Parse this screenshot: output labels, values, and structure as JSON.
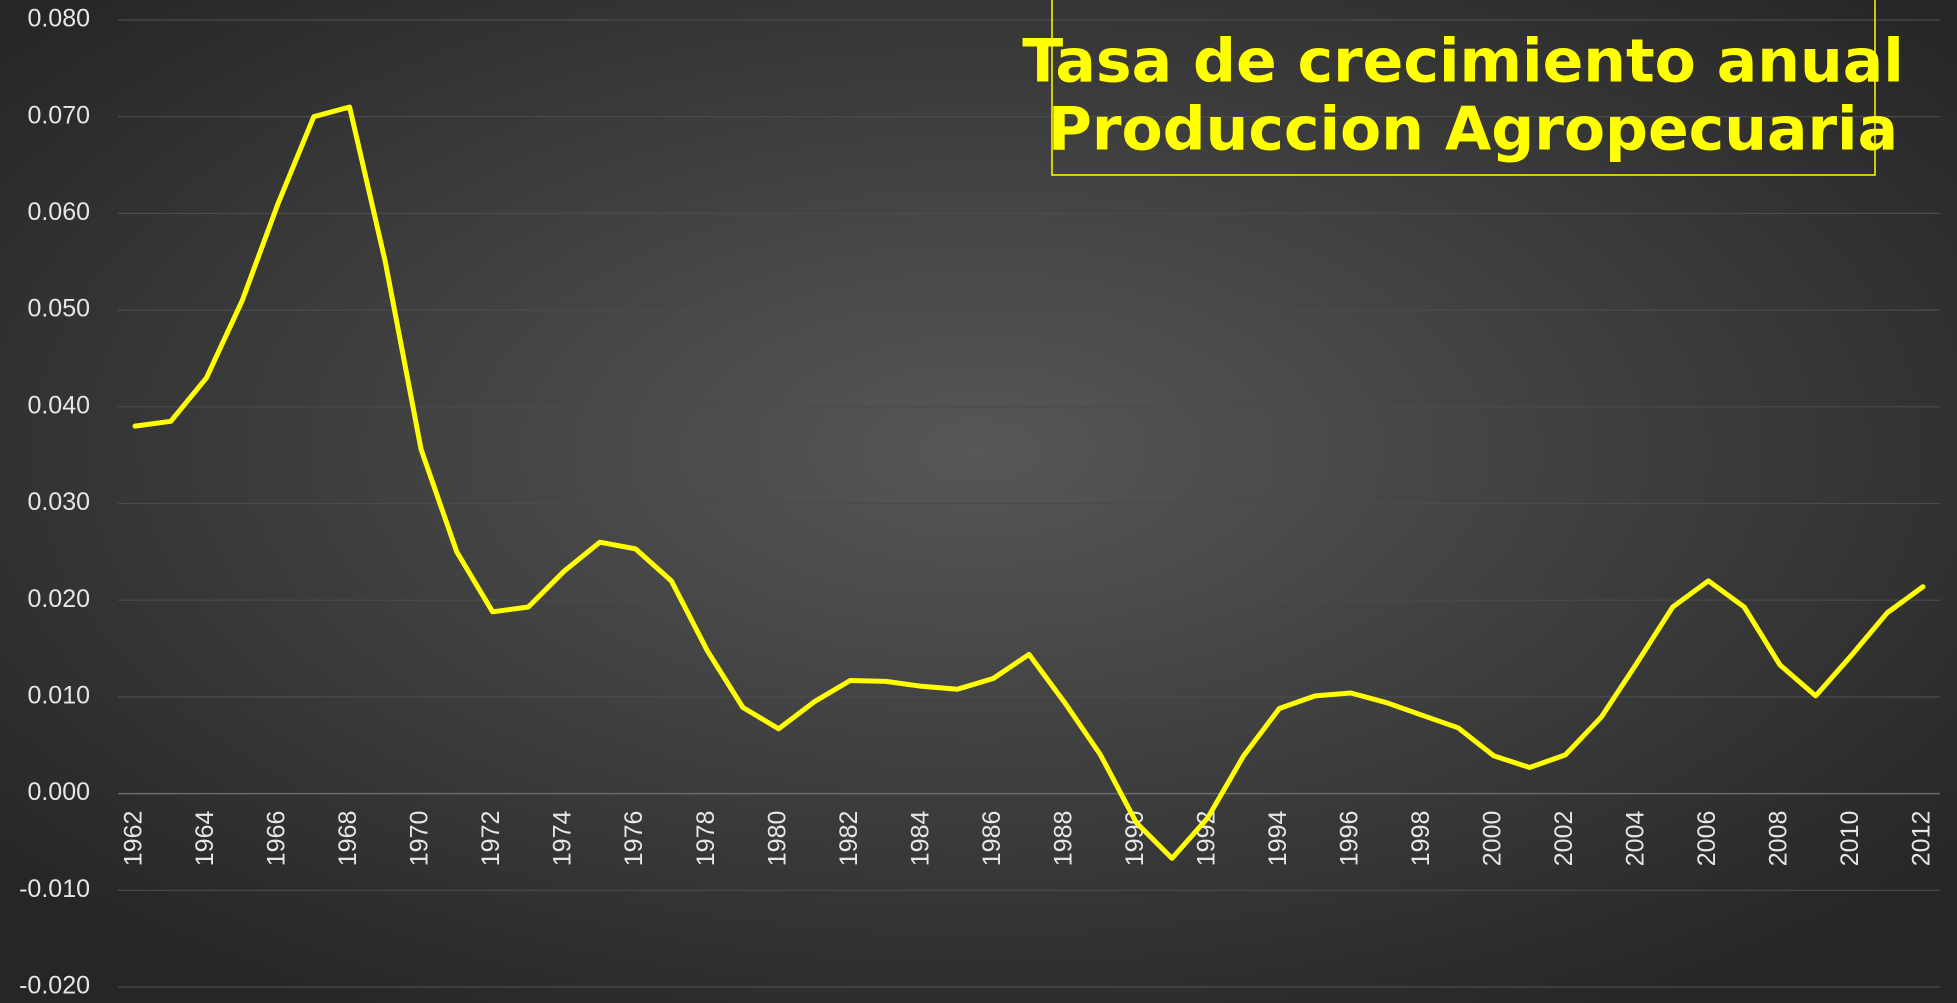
{
  "chart_data": {
    "type": "line",
    "title": [
      "Tasa de crecimiento anual",
      "Produccion Agropecuaria"
    ],
    "categories": [
      "1962",
      null,
      "1964",
      null,
      "1966",
      null,
      "1968",
      null,
      "1970",
      null,
      "1972",
      null,
      "1974",
      null,
      "1976",
      null,
      "1978",
      null,
      "1980",
      null,
      "1982",
      null,
      "1984",
      null,
      "1986",
      null,
      "1988",
      null,
      "1990",
      null,
      "1992",
      null,
      "1994",
      null,
      "1996",
      null,
      "1998",
      null,
      "2000",
      null,
      "2002",
      null,
      "2004",
      null,
      "2006",
      null,
      "2008",
      null,
      "2010",
      null,
      "2012"
    ],
    "series": [
      {
        "name": null,
        "color": "#ffff00",
        "values": [
          0.038,
          0.0385,
          0.043,
          0.051,
          0.061,
          0.07,
          0.071,
          0.055,
          0.0356,
          0.025,
          0.0188,
          0.0193,
          0.023,
          0.026,
          0.0253,
          0.022,
          0.0148,
          0.0089,
          0.0067,
          0.0095,
          0.0117,
          0.0116,
          0.0111,
          0.0108,
          0.0119,
          0.0144,
          0.0094,
          0.004,
          -0.003,
          -0.0067,
          -0.0025,
          0.0039,
          0.0088,
          0.0101,
          0.0104,
          0.0094,
          0.0081,
          0.0068,
          0.0039,
          0.0027,
          0.004,
          0.0079,
          0.0135,
          0.0193,
          0.022,
          0.0193,
          0.0133,
          0.0101,
          0.0143,
          0.0187,
          0.0214
        ]
      }
    ],
    "ylim": [
      -0.02,
      0.08
    ],
    "yticks": [
      {
        "value": -0.02,
        "label": "-0.020"
      },
      {
        "value": -0.01,
        "label": "-0.010"
      },
      {
        "value": 0,
        "label": "0.000"
      },
      {
        "value": 0.01,
        "label": "0.010"
      },
      {
        "value": 0.02,
        "label": "0.020"
      },
      {
        "value": 0.03,
        "label": "0.030"
      },
      {
        "value": 0.04,
        "label": "0.040"
      },
      {
        "value": 0.05,
        "label": "0.050"
      },
      {
        "value": 0.06,
        "label": "0.060"
      },
      {
        "value": 0.07,
        "label": "0.070"
      },
      {
        "value": 0.08,
        "label": "0.080"
      }
    ],
    "grid": true
  }
}
